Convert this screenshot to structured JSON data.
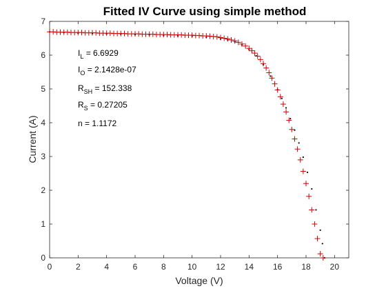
{
  "chart_data": {
    "type": "scatter",
    "title": "Fitted IV Curve using simple method",
    "xlabel": "Voltage (V)",
    "ylabel": "Current (A)",
    "xlim": [
      0,
      21
    ],
    "ylim": [
      0,
      7
    ],
    "xticks": [
      "0",
      "2",
      "4",
      "6",
      "8",
      "10",
      "12",
      "14",
      "16",
      "18",
      "20"
    ],
    "yticks": [
      "0",
      "1",
      "2",
      "3",
      "4",
      "5",
      "6",
      "7"
    ],
    "grid": false,
    "colors": {
      "measured": "#000000",
      "fitted": "#cc0000",
      "axes": "#262626"
    },
    "parameters": [
      {
        "main": "I",
        "sub": "L",
        "rest": " = 6.6929"
      },
      {
        "main": "I",
        "sub": "O",
        "rest": " = 2.1428e-07"
      },
      {
        "main": "R",
        "sub": "SH",
        "rest": " = 152.338"
      },
      {
        "main": "R",
        "sub": "S",
        "rest": " = 0.27205"
      },
      {
        "main": "n = 1.1172",
        "sub": "",
        "rest": ""
      }
    ],
    "series": [
      {
        "marker": "dot",
        "x": [
          0,
          1,
          2,
          3,
          4,
          5,
          6,
          7,
          8,
          9,
          10,
          11,
          12,
          12.5,
          13,
          13.5,
          14,
          14.5,
          15,
          15.5,
          16,
          16.3,
          16.6,
          16.9,
          17.2,
          17.5,
          17.8,
          18.1,
          18.4,
          18.7,
          19.0,
          19.15,
          19.3
        ],
        "y": [
          6.69,
          6.67,
          6.65,
          6.64,
          6.63,
          6.62,
          6.61,
          6.6,
          6.58,
          6.57,
          6.56,
          6.53,
          6.48,
          6.45,
          6.39,
          6.3,
          6.17,
          5.98,
          5.72,
          5.38,
          4.98,
          4.72,
          4.44,
          4.12,
          3.78,
          3.4,
          2.98,
          2.53,
          2.04,
          1.42,
          0.82,
          0.42,
          0.0
        ]
      },
      {
        "marker": "plus",
        "x": [
          0,
          0.25,
          0.5,
          0.75,
          1,
          1.25,
          1.5,
          1.75,
          2,
          2.25,
          2.5,
          2.75,
          3,
          3.25,
          3.5,
          3.75,
          4,
          4.25,
          4.5,
          4.75,
          5,
          5.25,
          5.5,
          5.75,
          6,
          6.25,
          6.5,
          6.75,
          7,
          7.25,
          7.5,
          7.75,
          8,
          8.25,
          8.5,
          8.75,
          9,
          9.25,
          9.5,
          9.75,
          10,
          10.25,
          10.5,
          10.75,
          11,
          11.25,
          11.5,
          11.75,
          12,
          12.25,
          12.5,
          12.75,
          13,
          13.25,
          13.5,
          13.75,
          14,
          14.2,
          14.4,
          14.6,
          14.8,
          15.0,
          15.2,
          15.4,
          15.6,
          15.8,
          16.0,
          16.2,
          16.4,
          16.6,
          16.8,
          17.0,
          17.2,
          17.4,
          17.6,
          17.8,
          18.0,
          18.2,
          18.4,
          18.6,
          18.8,
          19.0,
          19.2
        ],
        "y": [
          6.69,
          6.69,
          6.68,
          6.68,
          6.68,
          6.68,
          6.67,
          6.67,
          6.67,
          6.67,
          6.66,
          6.66,
          6.66,
          6.66,
          6.65,
          6.65,
          6.65,
          6.65,
          6.64,
          6.64,
          6.64,
          6.64,
          6.63,
          6.63,
          6.63,
          6.63,
          6.62,
          6.62,
          6.62,
          6.62,
          6.61,
          6.61,
          6.61,
          6.61,
          6.6,
          6.6,
          6.6,
          6.6,
          6.59,
          6.59,
          6.59,
          6.58,
          6.58,
          6.57,
          6.57,
          6.56,
          6.55,
          6.54,
          6.52,
          6.5,
          6.48,
          6.45,
          6.42,
          6.38,
          6.33,
          6.27,
          6.2,
          6.13,
          6.06,
          5.97,
          5.87,
          5.75,
          5.62,
          5.48,
          5.32,
          5.15,
          4.97,
          4.77,
          4.55,
          4.32,
          4.07,
          3.8,
          3.52,
          3.22,
          2.9,
          2.56,
          2.2,
          1.82,
          1.42,
          1.0,
          0.57,
          0.12,
          0.0
        ]
      }
    ]
  }
}
